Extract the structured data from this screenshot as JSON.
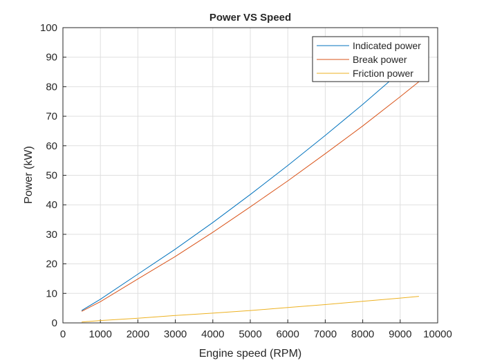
{
  "chart_data": {
    "type": "line",
    "title": "Power VS Speed",
    "xlabel": "Engine speed (RPM)",
    "ylabel": "Power (kW)",
    "xlim": [
      0,
      10000
    ],
    "ylim": [
      0,
      100
    ],
    "xticks": [
      0,
      1000,
      2000,
      3000,
      4000,
      5000,
      6000,
      7000,
      8000,
      9000,
      10000
    ],
    "yticks": [
      0,
      10,
      20,
      30,
      40,
      50,
      60,
      70,
      80,
      90,
      100
    ],
    "grid": true,
    "legend_position": "top-right",
    "x": [
      500,
      1000,
      2000,
      3000,
      4000,
      5000,
      6000,
      7000,
      8000,
      9000,
      9500
    ],
    "series": [
      {
        "name": "Indicated power",
        "color": "#0072BD",
        "values": [
          4.2,
          8.0,
          16.5,
          25.0,
          34.0,
          43.5,
          53.3,
          63.5,
          74.0,
          85.0,
          90.7
        ]
      },
      {
        "name": "Break power",
        "color": "#D95319",
        "values": [
          3.9,
          7.2,
          14.9,
          22.5,
          30.7,
          39.3,
          48.1,
          57.3,
          66.7,
          76.6,
          81.7
        ]
      },
      {
        "name": "Friction power",
        "color": "#EDB120",
        "values": [
          0.3,
          0.8,
          1.6,
          2.5,
          3.3,
          4.2,
          5.2,
          6.2,
          7.3,
          8.4,
          9.0
        ]
      }
    ]
  }
}
